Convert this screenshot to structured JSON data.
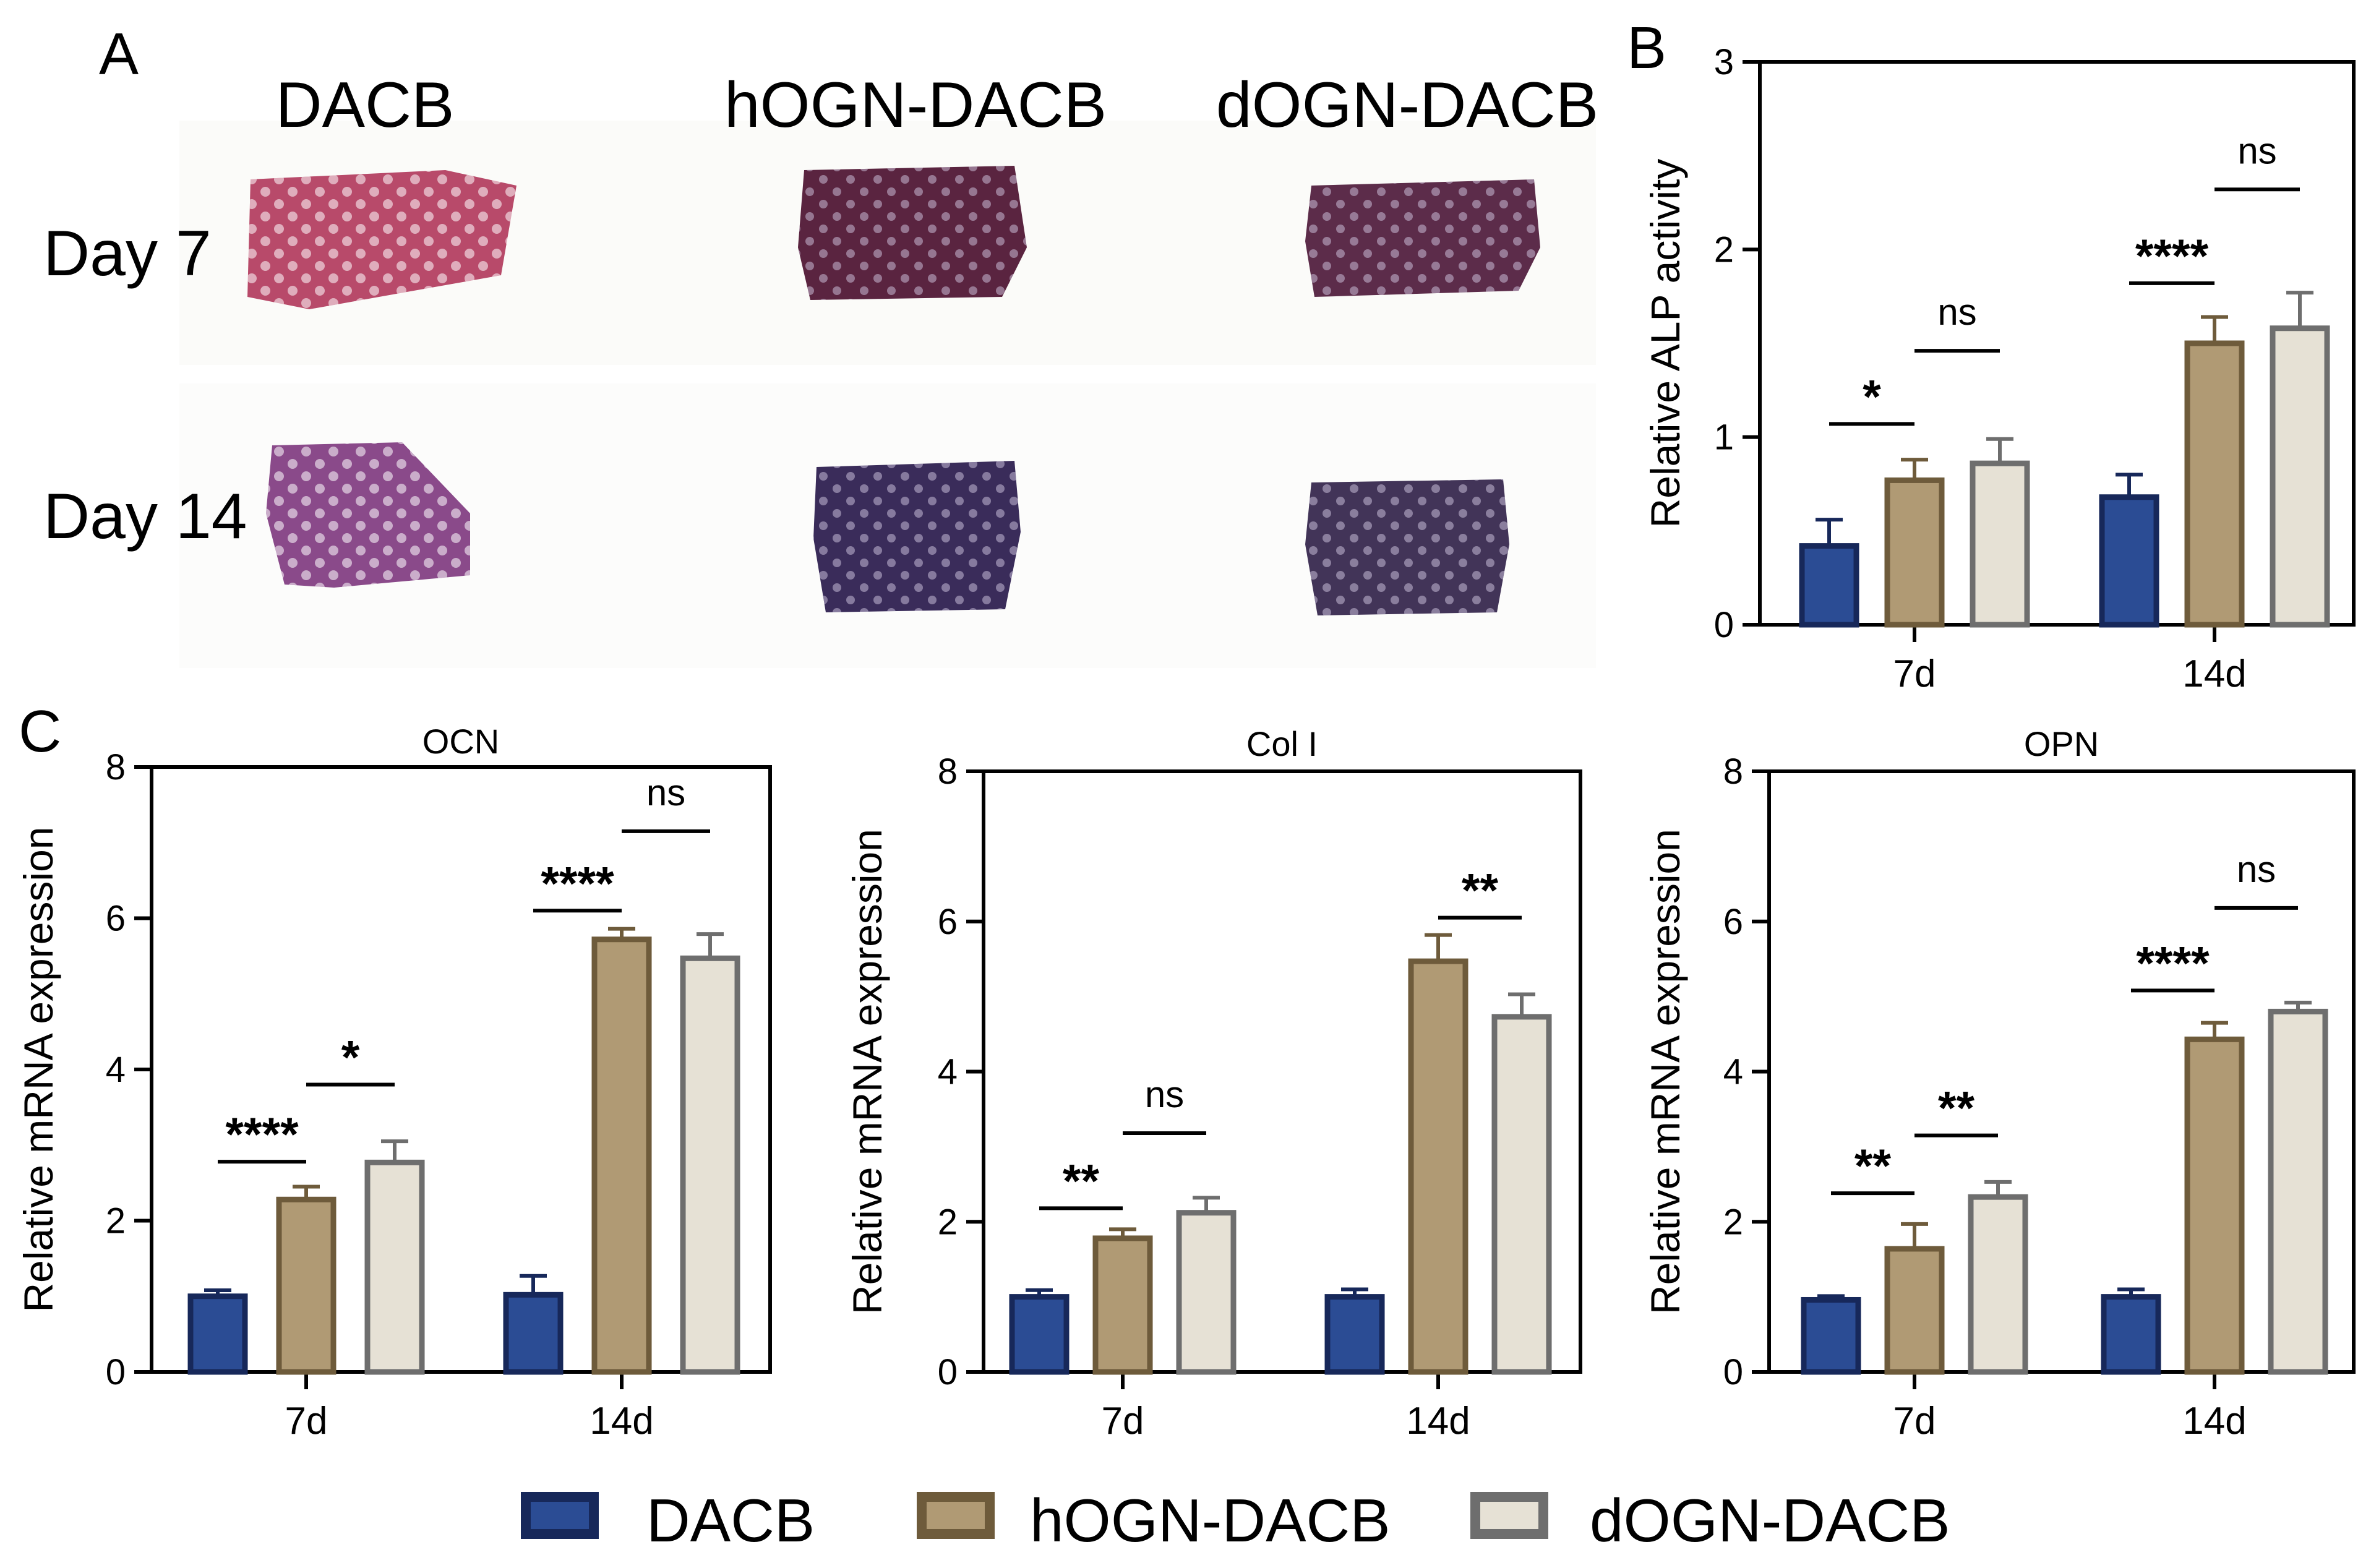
{
  "figure": {
    "panel_a": {
      "label": "A",
      "columns": [
        "DACB",
        "hOGN-DACB",
        "dOGN-DACB"
      ],
      "rows": [
        "Day 7",
        "Day 14"
      ]
    },
    "panel_b_label": "B",
    "panel_c_label": "C"
  },
  "colors": {
    "DACB": "#2B4C94",
    "hOGN-DACB": "#B09A74",
    "dOGN-DACB": "#E6E1D5",
    "DACB_edge": "#17285A",
    "hOGN-DACB_edge": "#6E5B3B",
    "dOGN-DACB_edge": "#6E6E6E",
    "stain_day7": "#7A2A4A",
    "stain_day14": "#3E2C5C"
  },
  "legend": {
    "entries": [
      "DACB",
      "hOGN-DACB",
      "dOGN-DACB"
    ]
  },
  "chart_data": [
    {
      "id": "alp",
      "type": "bar",
      "title": "",
      "xlabel": "",
      "ylabel": "Relative ALP activity",
      "ylim": [
        0,
        3
      ],
      "yticks": [
        "0",
        "1",
        "2",
        "3"
      ],
      "categories": [
        "7d",
        "14d"
      ],
      "series": [
        {
          "name": "DACB",
          "values": [
            0.42,
            0.68
          ],
          "errors": [
            0.14,
            0.12
          ]
        },
        {
          "name": "hOGN-DACB",
          "values": [
            0.77,
            1.5
          ],
          "errors": [
            0.11,
            0.14
          ]
        },
        {
          "name": "dOGN-DACB",
          "values": [
            0.86,
            1.58
          ],
          "errors": [
            0.13,
            0.19
          ]
        }
      ],
      "annotations": [
        {
          "text": "*",
          "category": 0,
          "from": 0,
          "to": 1,
          "y": 1.07
        },
        {
          "text": "ns",
          "category": 0,
          "from": 1,
          "to": 2,
          "y": 1.46
        },
        {
          "text": "****",
          "category": 1,
          "from": 0,
          "to": 1,
          "y": 1.82
        },
        {
          "text": "ns",
          "category": 1,
          "from": 1,
          "to": 2,
          "y": 2.32
        }
      ]
    },
    {
      "id": "ocn",
      "type": "bar",
      "title": "OCN",
      "xlabel": "",
      "ylabel": "Relative mRNA expression",
      "ylim": [
        0,
        8
      ],
      "yticks": [
        "0",
        "2",
        "4",
        "6",
        "8"
      ],
      "categories": [
        "7d",
        "14d"
      ],
      "series": [
        {
          "name": "DACB",
          "values": [
            1.0,
            1.02
          ],
          "errors": [
            0.08,
            0.25
          ]
        },
        {
          "name": "hOGN-DACB",
          "values": [
            2.28,
            5.72
          ],
          "errors": [
            0.17,
            0.14
          ]
        },
        {
          "name": "dOGN-DACB",
          "values": [
            2.77,
            5.47
          ],
          "errors": [
            0.28,
            0.32
          ]
        }
      ],
      "annotations": [
        {
          "text": "****",
          "category": 0,
          "from": 0,
          "to": 1,
          "y": 2.78
        },
        {
          "text": "*",
          "category": 0,
          "from": 1,
          "to": 2,
          "y": 3.8
        },
        {
          "text": "****",
          "category": 1,
          "from": 0,
          "to": 1,
          "y": 6.1
        },
        {
          "text": "ns",
          "category": 1,
          "from": 1,
          "to": 2,
          "y": 7.15
        }
      ]
    },
    {
      "id": "col1",
      "type": "bar",
      "title": "Col I",
      "xlabel": "",
      "ylabel": "Relative mRNA expression",
      "ylim": [
        0,
        8
      ],
      "yticks": [
        "0",
        "2",
        "4",
        "6",
        "8"
      ],
      "categories": [
        "7d",
        "14d"
      ],
      "series": [
        {
          "name": "DACB",
          "values": [
            1.0,
            1.0
          ],
          "errors": [
            0.09,
            0.1
          ]
        },
        {
          "name": "hOGN-DACB",
          "values": [
            1.78,
            5.47
          ],
          "errors": [
            0.12,
            0.35
          ]
        },
        {
          "name": "dOGN-DACB",
          "values": [
            2.12,
            4.73
          ],
          "errors": [
            0.2,
            0.3
          ]
        }
      ],
      "annotations": [
        {
          "text": "**",
          "category": 0,
          "from": 0,
          "to": 1,
          "y": 2.18
        },
        {
          "text": "ns",
          "category": 0,
          "from": 1,
          "to": 2,
          "y": 3.18
        },
        {
          "text": "**",
          "category": 1,
          "from": 1,
          "to": 2,
          "y": 6.05
        }
      ]
    },
    {
      "id": "opn",
      "type": "bar",
      "title": "OPN",
      "xlabel": "",
      "ylabel": "Relative mRNA expression",
      "ylim": [
        0,
        8
      ],
      "yticks": [
        "0",
        "2",
        "4",
        "6",
        "8"
      ],
      "categories": [
        "7d",
        "14d"
      ],
      "series": [
        {
          "name": "DACB",
          "values": [
            0.96,
            1.0
          ],
          "errors": [
            0.05,
            0.1
          ]
        },
        {
          "name": "hOGN-DACB",
          "values": [
            1.64,
            4.43
          ],
          "errors": [
            0.33,
            0.22
          ]
        },
        {
          "name": "dOGN-DACB",
          "values": [
            2.33,
            4.8
          ],
          "errors": [
            0.2,
            0.12
          ]
        }
      ],
      "annotations": [
        {
          "text": "**",
          "category": 0,
          "from": 0,
          "to": 1,
          "y": 2.38
        },
        {
          "text": "**",
          "category": 0,
          "from": 1,
          "to": 2,
          "y": 3.15
        },
        {
          "text": "****",
          "category": 1,
          "from": 0,
          "to": 1,
          "y": 5.08
        },
        {
          "text": "ns",
          "category": 1,
          "from": 1,
          "to": 2,
          "y": 6.18
        }
      ]
    }
  ]
}
